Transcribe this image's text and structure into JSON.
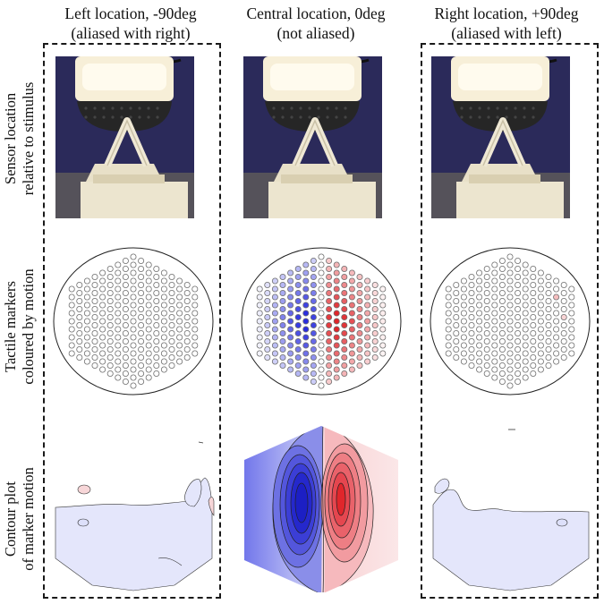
{
  "columns": [
    {
      "key": "left",
      "title_line1": "Left location, -90deg",
      "title_line2": "(aliased with right)",
      "dashed": true,
      "motion": "weak-left"
    },
    {
      "key": "center",
      "title_line1": "Central location, 0deg",
      "title_line2": "(not aliased)",
      "dashed": false,
      "motion": "strong"
    },
    {
      "key": "right",
      "title_line1": "Right location, +90deg",
      "title_line2": "(aliased with left)",
      "dashed": true,
      "motion": "weak-right"
    }
  ],
  "rows": [
    {
      "label_line1": "Sensor location",
      "label_line2": "relative to stimulus"
    },
    {
      "label_line1": "Tactile markers",
      "label_line2": "coloured by motion"
    },
    {
      "label_line1": "Contour plot",
      "label_line2": "of marker motion"
    }
  ],
  "colors": {
    "positive": "#e0262b",
    "negative": "#2a2ee0",
    "marker_outline": "#707070",
    "photo_background": "#2b2a5a",
    "printed_part": "#e8e0c8",
    "contour_pale_blue": "#e4e6fb"
  }
}
